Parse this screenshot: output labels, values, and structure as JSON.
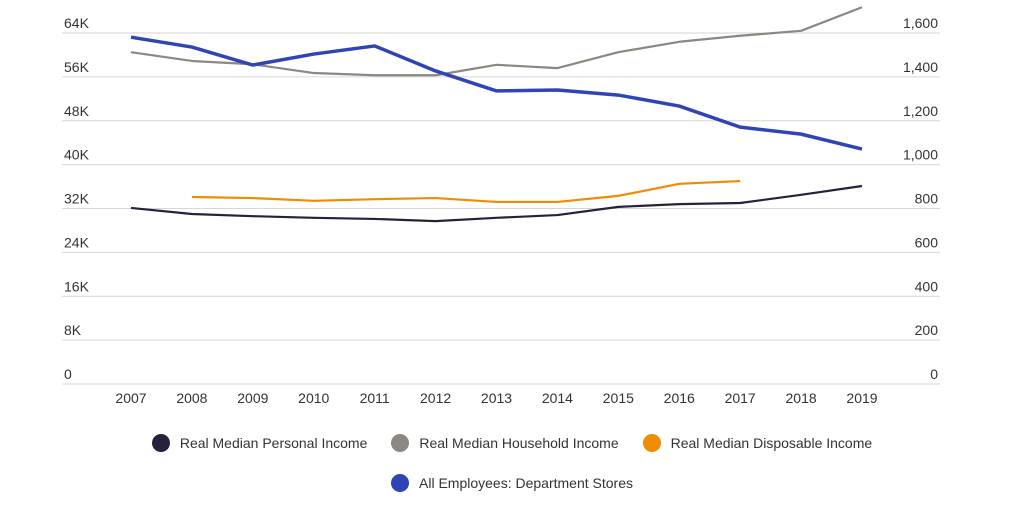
{
  "chart_data": {
    "type": "line",
    "x": [
      "2007",
      "2008",
      "2009",
      "2010",
      "2011",
      "2012",
      "2013",
      "2014",
      "2015",
      "2016",
      "2017",
      "2018",
      "2019"
    ],
    "y_left": {
      "range": [
        0,
        64000
      ],
      "ticks": [
        "0",
        "8K",
        "16K",
        "24K",
        "32K",
        "40K",
        "48K",
        "56K",
        "64K"
      ]
    },
    "y_right": {
      "range": [
        0,
        1600
      ],
      "ticks": [
        "0",
        "200",
        "400",
        "600",
        "800",
        "1,000",
        "1,200",
        "1,400",
        "1,600"
      ]
    },
    "grid": true,
    "legend_placement": "bottom",
    "series": [
      {
        "name": "Real Median Personal Income",
        "axis": "left",
        "color": "#25223d",
        "values": [
          32100,
          31000,
          30600,
          30300,
          30100,
          29700,
          30300,
          30800,
          32300,
          32800,
          33000,
          34500,
          36100
        ]
      },
      {
        "name": "Real Median Household Income",
        "axis": "left",
        "color": "#8c8780",
        "values": [
          60500,
          58900,
          58300,
          56700,
          56300,
          56300,
          58200,
          57600,
          60500,
          62400,
          63500,
          64400,
          68700
        ]
      },
      {
        "name": "Real Median Disposable Income",
        "axis": "left",
        "color": "#f08c00",
        "values": [
          null,
          34100,
          33900,
          33400,
          33700,
          33900,
          33200,
          33200,
          34300,
          36500,
          37000,
          null,
          null
        ]
      },
      {
        "name": "All Employees: Department Stores",
        "axis": "right",
        "color": "#2f45b5",
        "values": [
          1581,
          1536,
          1454,
          1504,
          1541,
          1427,
          1336,
          1340,
          1317,
          1267,
          1171,
          1139,
          1071
        ]
      }
    ]
  }
}
